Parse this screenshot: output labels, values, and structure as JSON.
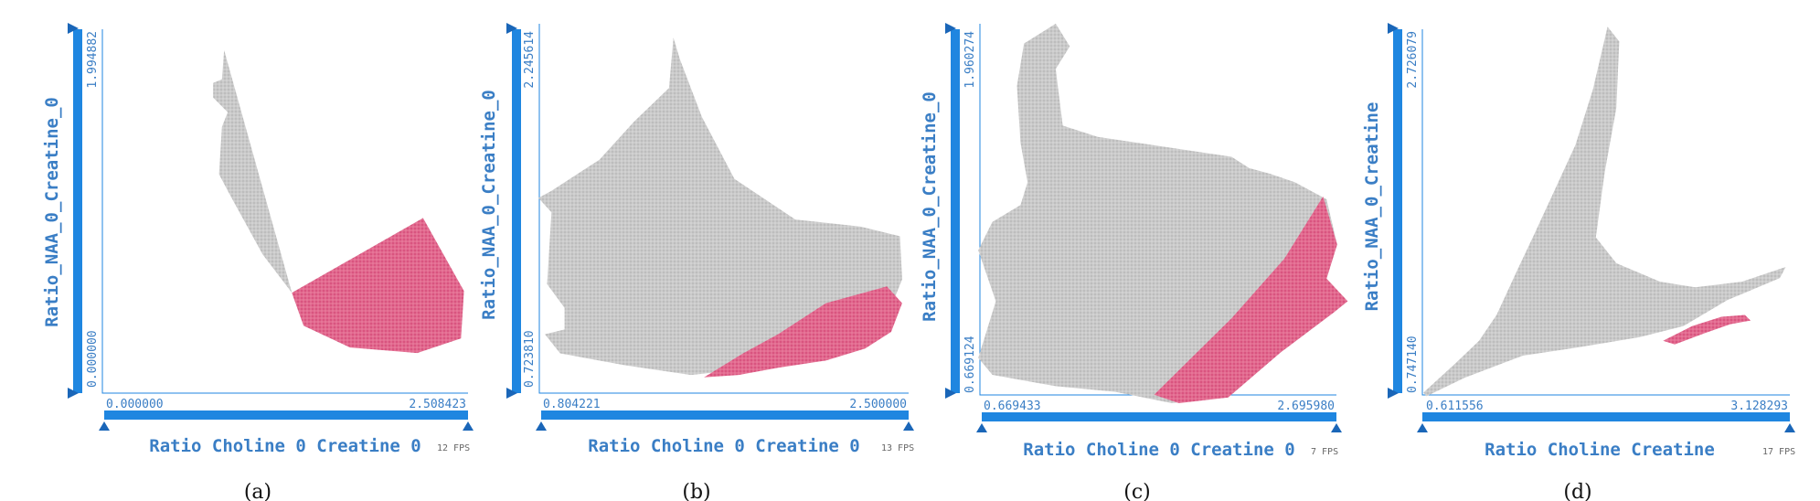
{
  "colors": {
    "axis_blue": "#1f86e0",
    "axis_dark": "#1a66b8",
    "label_blue": "#3a7ec5",
    "cloud_gray": "#c9c9c9",
    "highlight_pink": "#e0618a"
  },
  "chart_data": [
    {
      "type": "scatter",
      "caption": "(a)",
      "xlabel": "Ratio Choline 0 Creatine 0",
      "ylabel": "Ratio_NAA_0_Creatine_0",
      "xlim": [
        0.0,
        2.508423
      ],
      "ylim": [
        0.0,
        1.994882
      ],
      "x_tick_labels": [
        "0.000000",
        "2.508423"
      ],
      "y_tick_labels": [
        "0.000000",
        "1.994882"
      ],
      "fps_label": "12 FPS",
      "point_cloud_outline": [
        [
          0.835,
          1.88
        ],
        [
          0.82,
          1.72
        ],
        [
          0.76,
          1.7
        ],
        [
          0.76,
          1.62
        ],
        [
          0.86,
          1.54
        ],
        [
          0.82,
          1.46
        ],
        [
          0.8,
          1.2
        ],
        [
          0.88,
          1.08
        ],
        [
          1.1,
          0.76
        ],
        [
          1.3,
          0.55
        ],
        [
          2.2,
          0.96
        ],
        [
          2.48,
          0.56
        ],
        [
          2.46,
          0.3
        ],
        [
          2.16,
          0.22
        ],
        [
          1.8,
          0.26
        ],
        [
          1.7,
          0.25
        ],
        [
          1.38,
          0.37
        ],
        [
          1.3,
          0.55
        ]
      ],
      "selected_region_outline": [
        [
          1.3,
          0.55
        ],
        [
          2.2,
          0.96
        ],
        [
          2.48,
          0.56
        ],
        [
          2.46,
          0.3
        ],
        [
          2.16,
          0.22
        ],
        [
          1.7,
          0.25
        ],
        [
          1.38,
          0.37
        ]
      ]
    },
    {
      "type": "scatter",
      "caption": "(b)",
      "xlabel": "Ratio Choline 0 Creatine 0",
      "ylabel": "Ratio_NAA_0_Creatine_0",
      "xlim": [
        0.804221,
        2.5
      ],
      "ylim": [
        0.72381,
        2.245614
      ],
      "x_tick_labels": [
        "0.804221",
        "2.500000"
      ],
      "y_tick_labels": [
        "0.723810",
        "2.245614"
      ],
      "fps_label": "13 FPS",
      "point_cloud_outline": [
        [
          1.42,
          2.21
        ],
        [
          1.45,
          2.12
        ],
        [
          1.55,
          1.88
        ],
        [
          1.7,
          1.62
        ],
        [
          1.98,
          1.45
        ],
        [
          2.28,
          1.42
        ],
        [
          2.46,
          1.38
        ],
        [
          2.47,
          1.2
        ],
        [
          2.4,
          1.04
        ],
        [
          2.2,
          0.93
        ],
        [
          1.92,
          0.84
        ],
        [
          1.5,
          0.8
        ],
        [
          1.2,
          0.84
        ],
        [
          0.9,
          0.89
        ],
        [
          0.83,
          0.97
        ],
        [
          0.92,
          0.99
        ],
        [
          0.92,
          1.08
        ],
        [
          0.84,
          1.18
        ],
        [
          0.86,
          1.48
        ],
        [
          0.8,
          1.54
        ],
        [
          0.86,
          1.57
        ],
        [
          1.08,
          1.7
        ],
        [
          1.24,
          1.86
        ],
        [
          1.4,
          2.0
        ]
      ],
      "selected_region_outline": [
        [
          1.56,
          0.79
        ],
        [
          1.74,
          0.89
        ],
        [
          1.9,
          0.97
        ],
        [
          2.12,
          1.1
        ],
        [
          2.4,
          1.17
        ],
        [
          2.47,
          1.1
        ],
        [
          2.42,
          0.98
        ],
        [
          2.3,
          0.91
        ],
        [
          2.12,
          0.86
        ],
        [
          1.9,
          0.83
        ],
        [
          1.72,
          0.8
        ]
      ]
    },
    {
      "type": "scatter",
      "caption": "(c)",
      "xlabel": "Ratio Choline 0 Creatine 0",
      "ylabel": "Ratio_NAA_0_Creatine_0",
      "xlim": [
        0.669433,
        2.69598
      ],
      "ylim": [
        0.669124,
        1.960274
      ],
      "x_tick_labels": [
        "0.669433",
        "2.695980"
      ],
      "y_tick_labels": [
        "0.669124",
        "1.960274"
      ],
      "fps_label": "7 FPS",
      "point_cloud_outline": [
        [
          0.92,
          1.91
        ],
        [
          1.1,
          1.98
        ],
        [
          1.18,
          1.9
        ],
        [
          1.1,
          1.82
        ],
        [
          1.14,
          1.62
        ],
        [
          1.34,
          1.58
        ],
        [
          2.1,
          1.51
        ],
        [
          2.2,
          1.47
        ],
        [
          2.32,
          1.45
        ],
        [
          2.46,
          1.42
        ],
        [
          2.64,
          1.36
        ],
        [
          2.7,
          1.2
        ],
        [
          2.64,
          1.08
        ],
        [
          2.76,
          1.0
        ],
        [
          2.68,
          0.96
        ],
        [
          2.38,
          0.82
        ],
        [
          2.08,
          0.66
        ],
        [
          1.76,
          0.64
        ],
        [
          1.44,
          0.68
        ],
        [
          1.1,
          0.7
        ],
        [
          0.74,
          0.74
        ],
        [
          0.66,
          0.8
        ],
        [
          0.76,
          1.0
        ],
        [
          0.66,
          1.18
        ],
        [
          0.74,
          1.28
        ],
        [
          0.9,
          1.34
        ],
        [
          0.94,
          1.42
        ],
        [
          0.9,
          1.56
        ],
        [
          0.88,
          1.76
        ]
      ],
      "selected_region_outline": [
        [
          1.66,
          0.67
        ],
        [
          2.1,
          0.94
        ],
        [
          2.4,
          1.15
        ],
        [
          2.62,
          1.37
        ],
        [
          2.7,
          1.2
        ],
        [
          2.64,
          1.08
        ],
        [
          2.76,
          1.0
        ],
        [
          2.68,
          0.96
        ],
        [
          2.38,
          0.82
        ],
        [
          2.08,
          0.66
        ],
        [
          1.8,
          0.64
        ]
      ]
    },
    {
      "type": "scatter",
      "caption": "(d)",
      "xlabel": "Ratio Choline Creatine",
      "ylabel": "Ratio_NAA_0_Creatine",
      "xlim": [
        0.611556,
        3.128293
      ],
      "ylim": [
        0.74714,
        2.726079
      ],
      "x_tick_labels": [
        "0.611556",
        "3.128293"
      ],
      "y_tick_labels": [
        "0.747140",
        "2.726079"
      ],
      "fps_label": "17 FPS",
      "point_cloud_outline": [
        [
          0.62,
          0.76
        ],
        [
          0.84,
          0.92
        ],
        [
          1.0,
          1.04
        ],
        [
          1.12,
          1.18
        ],
        [
          1.26,
          1.42
        ],
        [
          1.38,
          1.62
        ],
        [
          1.52,
          1.86
        ],
        [
          1.66,
          2.1
        ],
        [
          1.78,
          2.4
        ],
        [
          1.88,
          2.74
        ],
        [
          1.96,
          2.66
        ],
        [
          1.94,
          2.3
        ],
        [
          1.86,
          1.95
        ],
        [
          1.8,
          1.6
        ],
        [
          1.94,
          1.46
        ],
        [
          2.24,
          1.36
        ],
        [
          2.48,
          1.33
        ],
        [
          2.8,
          1.36
        ],
        [
          3.1,
          1.44
        ],
        [
          3.06,
          1.38
        ],
        [
          2.7,
          1.26
        ],
        [
          2.4,
          1.12
        ],
        [
          2.1,
          1.06
        ],
        [
          1.8,
          1.02
        ],
        [
          1.64,
          1.0
        ],
        [
          1.3,
          0.96
        ],
        [
          0.9,
          0.84
        ],
        [
          0.64,
          0.74
        ]
      ],
      "selected_region_outline": [
        [
          2.26,
          1.04
        ],
        [
          2.46,
          1.12
        ],
        [
          2.66,
          1.17
        ],
        [
          2.82,
          1.18
        ],
        [
          2.86,
          1.15
        ],
        [
          2.72,
          1.13
        ],
        [
          2.54,
          1.08
        ],
        [
          2.34,
          1.02
        ]
      ]
    }
  ]
}
